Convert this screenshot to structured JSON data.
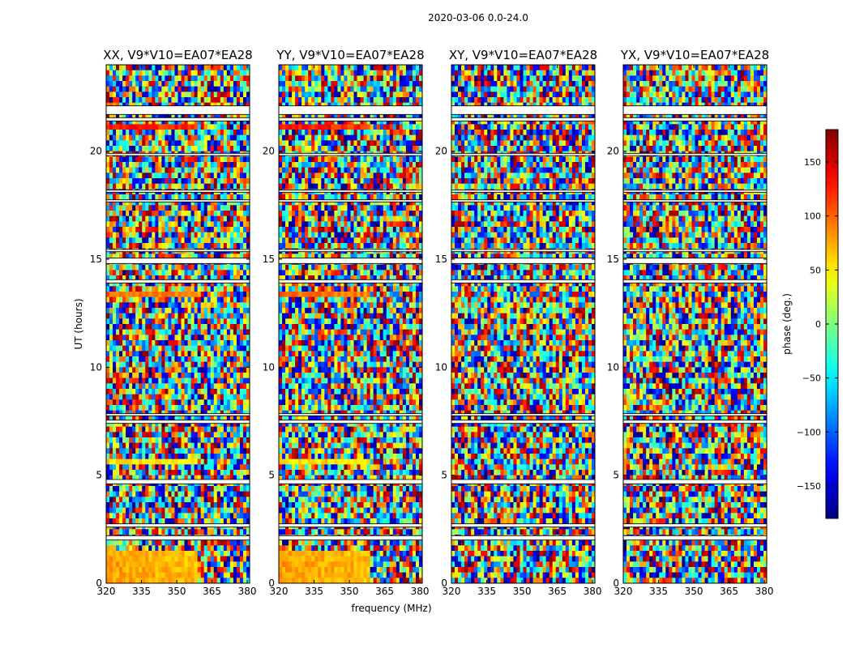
{
  "figure": {
    "suptitle": "2020-03-06 0.0-24.0",
    "colormap": "jet",
    "colorbar_ticks_text": [
      "150",
      "100",
      "50",
      "0",
      "−50",
      "−100",
      "−150"
    ],
    "colors": {
      "background": "#ffffff",
      "axes": "#000000",
      "gap": "#ffffff"
    }
  },
  "chart_data": {
    "type": "heatmap",
    "title": "2020-03-06 0.0-24.0",
    "xlabel": "frequency (MHz)",
    "ylabel": "UT (hours)",
    "xlim": [
      320,
      381
    ],
    "ylim": [
      0,
      24
    ],
    "xticks": [
      320,
      335,
      350,
      365,
      380
    ],
    "yticks": [
      0,
      5,
      10,
      15,
      20
    ],
    "colorbar": {
      "label": "phase (deg.)",
      "range": [
        -180,
        180
      ],
      "ticks": [
        150,
        100,
        50,
        0,
        -50,
        -100,
        -150
      ],
      "colormap": "jet"
    },
    "panels": [
      {
        "id": "xx",
        "title": "XX, V9*V10=EA07*EA28",
        "polarization": "XX",
        "baseline": "V9*V10=EA07*EA28"
      },
      {
        "id": "yy",
        "title": "YY, V9*V10=EA07*EA28",
        "polarization": "YY",
        "baseline": "V9*V10=EA07*EA28"
      },
      {
        "id": "xy",
        "title": "XY, V9*V10=EA07*EA28",
        "polarization": "XY",
        "baseline": "V9*V10=EA07*EA28"
      },
      {
        "id": "yx",
        "title": "YX, V9*V10=EA07*EA28",
        "polarization": "YX",
        "baseline": "V9*V10=EA07*EA28"
      }
    ],
    "flagged_ut_ranges": [
      [
        2.0,
        2.2
      ],
      [
        2.6,
        2.75
      ],
      [
        4.6,
        4.8
      ],
      [
        7.4,
        7.55
      ],
      [
        7.75,
        7.85
      ],
      [
        13.9,
        14.05
      ],
      [
        14.8,
        15.05
      ],
      [
        15.35,
        15.45
      ],
      [
        17.65,
        17.75
      ],
      [
        18.1,
        18.2
      ],
      [
        19.8,
        19.9
      ],
      [
        21.4,
        21.55
      ],
      [
        21.7,
        22.1
      ]
    ],
    "coherent_phase_bands": [
      {
        "ut_range": [
          0.0,
          1.5
        ],
        "phase_deg": 80,
        "note": "parallel hands"
      },
      {
        "ut_range": [
          5.4,
          5.7
        ],
        "phase_deg": 60,
        "note": "parallel hands"
      },
      {
        "ut_range": [
          13.3,
          13.6
        ],
        "phase_deg": 100,
        "note": "parallel hands"
      },
      {
        "ut_range": [
          20.9,
          21.3
        ],
        "phase_deg": 130,
        "note": "parallel hands"
      }
    ],
    "description": "Per-channel visibility phase versus UT and frequency for each polarization product; phase values are mostly noise-like with horizontal flagged (blank) rows."
  }
}
